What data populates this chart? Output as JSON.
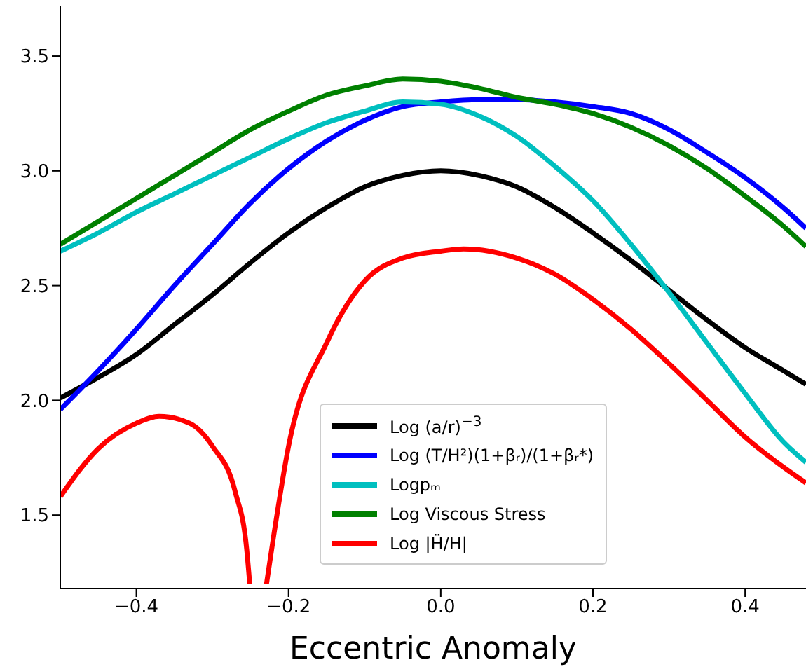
{
  "chart_data": {
    "type": "line",
    "xlabel": "Eccentric Anomaly",
    "legend": "bottom",
    "grid": false,
    "line_style": "solid",
    "marker": "none",
    "xlim": [
      -0.5,
      0.48
    ],
    "ylim": [
      1.18,
      3.72
    ],
    "xticks": [
      {
        "value": -0.4,
        "label": "−0.4"
      },
      {
        "value": -0.2,
        "label": "−0.2"
      },
      {
        "value": 0,
        "label": "0.0"
      },
      {
        "value": 0.2,
        "label": "0.2"
      },
      {
        "value": 0.4,
        "label": "0.4"
      }
    ],
    "yticks": [
      1.5,
      {
        "value": 2,
        "label": "2.0"
      },
      2.5,
      {
        "value": 3,
        "label": "3.0"
      },
      3.5
    ],
    "series": [
      {
        "name": "Log (a/r)$^{−3}$",
        "color": "#000000",
        "x": [
          -0.5,
          -0.45,
          -0.4,
          -0.35,
          -0.3,
          -0.25,
          -0.2,
          -0.15,
          -0.1,
          -0.05,
          0,
          0.05,
          0.1,
          0.15,
          0.2,
          0.25,
          0.3,
          0.35,
          0.4,
          0.45,
          0.48
        ],
        "values": [
          2.01,
          2.1,
          2.2,
          2.33,
          2.46,
          2.6,
          2.73,
          2.84,
          2.93,
          2.98,
          3.0,
          2.98,
          2.93,
          2.84,
          2.73,
          2.61,
          2.48,
          2.35,
          2.23,
          2.13,
          2.07
        ]
      },
      {
        "name": "Log (T/H²)(1+βᵣ)/(1+βᵣ*)",
        "color": "#0000ff",
        "x": [
          -0.5,
          -0.45,
          -0.4,
          -0.35,
          -0.3,
          -0.25,
          -0.2,
          -0.15,
          -0.1,
          -0.05,
          0,
          0.05,
          0.1,
          0.15,
          0.2,
          0.25,
          0.3,
          0.35,
          0.4,
          0.45,
          0.48
        ],
        "values": [
          1.96,
          2.13,
          2.31,
          2.5,
          2.68,
          2.86,
          3.01,
          3.13,
          3.22,
          3.28,
          3.3,
          3.31,
          3.31,
          3.3,
          3.28,
          3.25,
          3.18,
          3.08,
          2.97,
          2.84,
          2.75
        ]
      },
      {
        "name": "Logpₘ",
        "color": "#00bfbf",
        "x": [
          -0.5,
          -0.45,
          -0.4,
          -0.35,
          -0.3,
          -0.25,
          -0.2,
          -0.15,
          -0.1,
          -0.05,
          0,
          0.05,
          0.1,
          0.15,
          0.2,
          0.25,
          0.3,
          0.35,
          0.4,
          0.45,
          0.48
        ],
        "values": [
          2.65,
          2.73,
          2.82,
          2.9,
          2.98,
          3.06,
          3.14,
          3.21,
          3.26,
          3.3,
          3.29,
          3.24,
          3.15,
          3.02,
          2.87,
          2.68,
          2.47,
          2.25,
          2.03,
          1.82,
          1.73
        ]
      },
      {
        "name": "Log Viscous Stress",
        "color": "#008000",
        "x": [
          -0.5,
          -0.45,
          -0.4,
          -0.35,
          -0.3,
          -0.25,
          -0.2,
          -0.15,
          -0.1,
          -0.05,
          0,
          0.05,
          0.1,
          0.15,
          0.2,
          0.25,
          0.3,
          0.35,
          0.4,
          0.45,
          0.48
        ],
        "values": [
          2.68,
          2.78,
          2.88,
          2.98,
          3.08,
          3.18,
          3.26,
          3.33,
          3.37,
          3.4,
          3.39,
          3.36,
          3.32,
          3.29,
          3.25,
          3.19,
          3.11,
          3.01,
          2.89,
          2.76,
          2.67
        ]
      },
      {
        "name": "Log |Ḧ/H|",
        "color": "#ff0000",
        "x": [
          -0.5,
          -0.45,
          -0.4,
          -0.37,
          -0.33,
          -0.3,
          -0.27,
          -0.255,
          -0.251,
          -0.24,
          -0.229,
          -0.22,
          -0.2,
          -0.15,
          -0.1,
          -0.05,
          0,
          0.03,
          0.1,
          0.15,
          0.2,
          0.25,
          0.3,
          0.35,
          0.4,
          0.45,
          0.48
        ],
        "values": [
          1.58,
          1.79,
          1.9,
          1.93,
          1.9,
          1.8,
          1.6,
          1.35,
          1.2,
          null,
          1.2,
          1.4,
          1.8,
          2.25,
          2.52,
          2.62,
          2.65,
          2.66,
          2.62,
          2.55,
          2.44,
          2.31,
          2.16,
          2.0,
          1.84,
          1.71,
          1.64
        ]
      }
    ]
  }
}
